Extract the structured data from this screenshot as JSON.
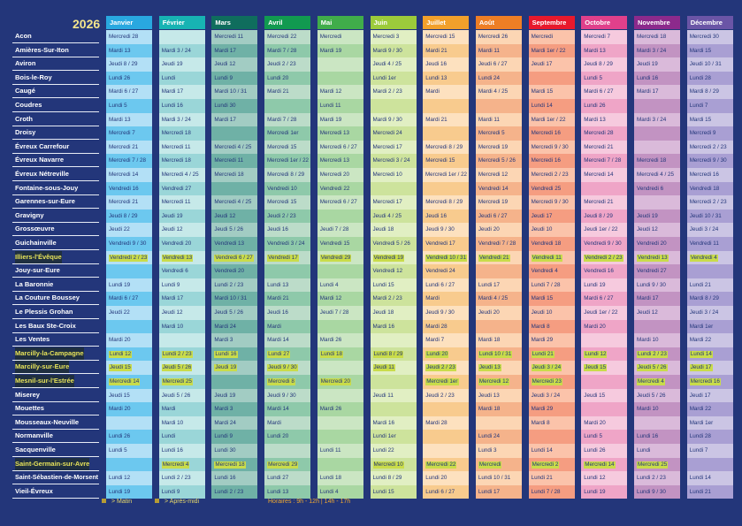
{
  "year": "2026",
  "months": [
    {
      "label": "Janvier",
      "header": "#29a8e0",
      "light": "#b3e0f6",
      "dark": "#6cc8ef"
    },
    {
      "label": "Février",
      "header": "#17b3b3",
      "light": "#c6e9e9",
      "dark": "#9ad6d8"
    },
    {
      "label": "Mars",
      "header": "#0f6d5d",
      "light": "#a2ccc3",
      "dark": "#6fb1a6"
    },
    {
      "label": "Avril",
      "header": "#119a50",
      "light": "#bcdcc9",
      "dark": "#8ec9aa"
    },
    {
      "label": "Mai",
      "header": "#40ad4a",
      "light": "#cbe6c3",
      "dark": "#a9d7a2"
    },
    {
      "label": "Juin",
      "header": "#9ccb3b",
      "light": "#e1efc3",
      "dark": "#cde39c"
    },
    {
      "label": "Juillet",
      "header": "#f2a02b",
      "light": "#fde1bf",
      "dark": "#f8cb8e"
    },
    {
      "label": "Août",
      "header": "#ee7e25",
      "light": "#fcd6b4",
      "dark": "#f5b38b"
    },
    {
      "label": "Septembre",
      "header": "#e8192c",
      "light": "#fbc3aa",
      "dark": "#f59d81"
    },
    {
      "label": "Octobre",
      "header": "#e0408b",
      "light": "#f6cade",
      "dark": "#efa5c7"
    },
    {
      "label": "Novembre",
      "header": "#8c2a8c",
      "light": "#dabada",
      "dark": "#c293c2"
    },
    {
      "label": "Décembre",
      "header": "#6a55a6",
      "light": "#cbc5e4",
      "dark": "#a99fd3"
    }
  ],
  "rows": [
    {
      "name": "Acon",
      "dates": [
        "Mercredi 28",
        "",
        "Mercredi 11",
        "Mercredi 22",
        "Mercredi",
        "Mercredi 3",
        "Mercredi 15",
        "Mercredi 26",
        "Mercredi",
        "Mercredi 7",
        "Mercredi 18",
        "Mercredi 30"
      ]
    },
    {
      "name": "Amières-Sur-Iton",
      "dates": [
        "Mardi 13",
        "Mardi 3 / 24",
        "Mardi 17",
        "Mardi 7 / 28",
        "Mardi 19",
        "Mardi 9 / 30",
        "Mardi 21",
        "Mardi 11",
        "Mardi 1er / 22",
        "Mardi 13",
        "Mardi 3 / 24",
        "Mardi 15"
      ]
    },
    {
      "name": "Aviron",
      "dates": [
        "Jeudi 8 / 29",
        "Jeudi 19",
        "Jeudi 12",
        "Jeudi 2 / 23",
        "",
        "Jeudi 4 / 25",
        "Jeudi 16",
        "Jeudi 6 / 27",
        "Jeudi 17",
        "Jeudi 8 / 29",
        "Jeudi 19",
        "Jeudi 10 / 31"
      ]
    },
    {
      "name": "Bois-le-Roy",
      "dates": [
        "Lundi 26",
        "Lundi",
        "Lundi 9",
        "Lundi 20",
        "",
        "Lundi 1er",
        "Lundi 13",
        "Lundi 24",
        "",
        "Lundi 5",
        "Lundi 16",
        "Lundi 28"
      ]
    },
    {
      "name": "Caugé",
      "dates": [
        "Mardi 6 / 27",
        "Mardi 17",
        "Mardi 10 / 31",
        "Mardi 21",
        "Mardi 12",
        "Mardi 2 / 23",
        "Mardi",
        "Mardi 4 / 25",
        "Mardi 15",
        "Mardi 6 / 27",
        "Mardi 17",
        "Mardi 8 / 29"
      ]
    },
    {
      "name": "Coudres",
      "dates": [
        "Lundi 5",
        "Lundi 16",
        "Lundi 30",
        "",
        "Lundi 11",
        "",
        "",
        "",
        "Lundi 14",
        "Lundi 26",
        "",
        "Lundi 7"
      ]
    },
    {
      "name": "Croth",
      "dates": [
        "Mardi 13",
        "Mardi 3 / 24",
        "Mardi 17",
        "Mardi 7 / 28",
        "Mardi 19",
        "Mardi 9 / 30",
        "Mardi 21",
        "Mardi 11",
        "Mardi 1er / 22",
        "Mardi 13",
        "Mardi 3 / 24",
        "Mardi 15"
      ]
    },
    {
      "name": "Droisy",
      "dates": [
        "Mercredi 7",
        "Mercredi 18",
        "",
        "Mercredi 1er",
        "Mercredi 13",
        "Mercredi 24",
        "",
        "Mercredi 5",
        "Mercredi 16",
        "Mercredi 28",
        "",
        "Mercredi 9"
      ]
    },
    {
      "name": "Évreux Carrefour",
      "dates": [
        "Mercredi 21",
        "Mercredi 11",
        "Mercredi 4 / 25",
        "Mercredi 15",
        "Mercredi 6 / 27",
        "Mercredi 17",
        "Mercredi 8 / 29",
        "Mercredi 19",
        "Mercredi 9 / 30",
        "Mercredi 21",
        "",
        "Mercredi 2 / 23"
      ]
    },
    {
      "name": "Évreux Navarre",
      "dates": [
        "Mercredi 7 / 28",
        "Mercredi 18",
        "Mercredi 11",
        "Mercredi 1er / 22",
        "Mercredi 13",
        "Mercredi 3 / 24",
        "Mercredi 15",
        "Mercredi 5 / 26",
        "Mercredi 16",
        "Mercredi 7 / 28",
        "Mercredi 18",
        "Mercredi 9 / 30"
      ]
    },
    {
      "name": "Évreux Nétreville",
      "dates": [
        "Mercredi 14",
        "Mercredi 4 / 25",
        "Mercredi 18",
        "Mercredi 8 / 29",
        "Mercredi 20",
        "Mercredi 10",
        "Mercredi 1er / 22",
        "Mercredi 12",
        "Mercredi 2 / 23",
        "Mercredi 14",
        "Mercredi 4 / 25",
        "Mercredi 16"
      ]
    },
    {
      "name": "Fontaine-sous-Jouy",
      "dates": [
        "Vendredi 16",
        "Vendredi 27",
        "",
        "Vendredi 10",
        "Vendredi 22",
        "",
        "",
        "Vendredi 14",
        "Vendredi 25",
        "",
        "Vendredi 6",
        "Vendredi 18"
      ]
    },
    {
      "name": "Garennes-sur-Eure",
      "dates": [
        "Mercredi 21",
        "Mercredi 11",
        "Mercredi 4 / 25",
        "Mercredi 15",
        "Mercredi 6 / 27",
        "Mercredi 17",
        "Mercredi 8 / 29",
        "Mercredi 19",
        "Mercredi 9 / 30",
        "Mercredi 21",
        "",
        "Mercredi 2 / 23"
      ]
    },
    {
      "name": "Gravigny",
      "dates": [
        "Jeudi 8 / 29",
        "Jeudi 19",
        "Jeudi 12",
        "Jeudi 2 / 23",
        "",
        "Jeudi 4 / 25",
        "Jeudi 16",
        "Jeudi 6 / 27",
        "Jeudi 17",
        "Jeudi 8 / 29",
        "Jeudi 19",
        "Jeudi 10 / 31"
      ]
    },
    {
      "name": "Grossœuvre",
      "dates": [
        "Jeudi 22",
        "Jeudi 12",
        "Jeudi 5 / 26",
        "Jeudi 16",
        "Jeudi 7 / 28",
        "Jeudi 18",
        "Jeudi 9 / 30",
        "Jeudi 20",
        "Jeudi 10",
        "Jeudi 1er / 22",
        "Jeudi 12",
        "Jeudi 3 / 24"
      ]
    },
    {
      "name": "Guichainville",
      "dates": [
        "Vendredi 9 / 30",
        "Vendredi 20",
        "Vendredi 13",
        "Vendredi 3 / 24",
        "Vendredi 15",
        "Vendredi 5 / 26",
        "Vendredi 17",
        "Vendredi 7 / 28",
        "Vendredi 18",
        "Vendredi 9 / 30",
        "Vendredi 20",
        "Vendredi 11"
      ]
    },
    {
      "name": "Illiers-l'Évêque",
      "highlight": true,
      "dates": [
        "Vendredi 2 / 23",
        "Vendredi 13",
        "Vendredi 6 / 27",
        "Vendredi 17",
        "Vendredi 29",
        "Vendredi 19",
        "Vendredi 10 / 31",
        "Vendredi 21",
        "Vendredi 11",
        "Vendredi 2 / 23",
        "Vendredi 13",
        "Vendredi 4"
      ]
    },
    {
      "name": "Jouy-sur-Eure",
      "dates": [
        "",
        "Vendredi 6",
        "Vendredi 20",
        "",
        "",
        "Vendredi 12",
        "Vendredi 24",
        "",
        "Vendredi 4",
        "Vendredi 16",
        "Vendredi 27",
        ""
      ]
    },
    {
      "name": "La Baronnie",
      "dates": [
        "Lundi 19",
        "Lundi 9",
        "Lundi 2 / 23",
        "Lundi 13",
        "Lundi 4",
        "Lundi 15",
        "Lundi 6 / 27",
        "Lundi 17",
        "Lundi 7 / 28",
        "Lundi 19",
        "Lundi 9 / 30",
        "Lundi 21"
      ]
    },
    {
      "name": "La Couture Boussey",
      "dates": [
        "Mardi 6 / 27",
        "Mardi 17",
        "Mardi 10 / 31",
        "Mardi 21",
        "Mardi 12",
        "Mardi 2 / 23",
        "Mardi",
        "Mardi 4 / 25",
        "Mardi 15",
        "Mardi 6 / 27",
        "Mardi 17",
        "Mardi 8 / 29"
      ]
    },
    {
      "name": "Le Plessis Grohan",
      "dates": [
        "Jeudi 22",
        "Jeudi 12",
        "Jeudi 5 / 26",
        "Jeudi 16",
        "Jeudi 7 / 28",
        "Jeudi 18",
        "Jeudi 9 / 30",
        "Jeudi 20",
        "Jeudi 10",
        "Jeudi 1er / 22",
        "Jeudi 12",
        "Jeudi 3 / 24"
      ]
    },
    {
      "name": "Les Baux Ste-Croix",
      "dates": [
        "",
        "Mardi 10",
        "Mardi 24",
        "Mardi",
        "",
        "Mardi 16",
        "Mardi 28",
        "",
        "Mardi 8",
        "Mardi 20",
        "",
        "Mardi 1er"
      ]
    },
    {
      "name": "Les Ventes",
      "dates": [
        "Mardi 20",
        "",
        "Mardi 3",
        "Mardi 14",
        "Mardi 26",
        "",
        "Mardi 7",
        "Mardi 18",
        "Mardi 29",
        "",
        "Mardi 10",
        "Mardi 22"
      ]
    },
    {
      "name": "Marcilly-la-Campagne",
      "highlight": true,
      "dates": [
        "Lundi 12",
        "Lundi 2 / 23",
        "Lundi 16",
        "Lundi 27",
        "Lundi 18",
        "Lundi 8 / 29",
        "Lundi 20",
        "Lundi 10 / 31",
        "Lundi 21",
        "Lundi 12",
        "Lundi 2 / 23",
        "Lundi 14"
      ]
    },
    {
      "name": "Marcilly-sur-Eure",
      "highlight": true,
      "dates": [
        "Jeudi 15",
        "Jeudi 5 / 26",
        "Jeudi 19",
        "Jeudi 9 / 30",
        "",
        "Jeudi 11",
        "Jeudi 2 / 23",
        "Jeudi 13",
        "Jeudi 3 / 24",
        "Jeudi 15",
        "Jeudi 5 / 26",
        "Jeudi 17"
      ]
    },
    {
      "name": "Mesnil-sur-l'Estrée",
      "highlight": true,
      "dates": [
        "Mercredi 14",
        "Mercredi 25",
        "",
        "Mercredi 8",
        "Mercredi 20",
        "",
        "Mercredi 1er",
        "Mercredi 12",
        "Mercredi 23",
        "",
        "Mercredi 4",
        "Mercredi 16"
      ]
    },
    {
      "name": "Miserey",
      "dates": [
        "Jeudi 15",
        "Jeudi 5 / 26",
        "Jeudi 19",
        "Jeudi 9 / 30",
        "",
        "Jeudi 11",
        "Jeudi 2 / 23",
        "Jeudi 13",
        "Jeudi 3 / 24",
        "Jeudi 15",
        "Jeudi 5 / 26",
        "Jeudi 17"
      ]
    },
    {
      "name": "Mouettes",
      "dates": [
        "Mardi 20",
        "Mardi",
        "Mardi 3",
        "Mardi 14",
        "Mardi 26",
        "",
        "",
        "Mardi 18",
        "Mardi 29",
        "",
        "Mardi 10",
        "Mardi 22"
      ]
    },
    {
      "name": "Mousseaux-Neuville",
      "dates": [
        "",
        "Mardi 10",
        "Mardi 24",
        "Mardi",
        "",
        "Mardi 16",
        "Mardi 28",
        "",
        "Mardi 8",
        "Mardi 20",
        "",
        "Mardi 1er"
      ]
    },
    {
      "name": "Normanville",
      "dates": [
        "Lundi 26",
        "Lundi",
        "Lundi 9",
        "Lundi 20",
        "",
        "Lundi 1er",
        "",
        "Lundi 24",
        "",
        "Lundi 5",
        "Lundi 16",
        "Lundi 28"
      ]
    },
    {
      "name": "Sacquenville",
      "dates": [
        "Lundi 5",
        "Lundi 16",
        "Lundi 30",
        "",
        "Lundi 11",
        "Lundi 22",
        "",
        "Lundi 3",
        "Lundi 14",
        "Lundi 26",
        "Lundi",
        "Lundi 7"
      ]
    },
    {
      "name": "Saint-Germain-sur-Avre",
      "highlight": true,
      "dates": [
        "",
        "Mercredi 4",
        "Mercredi 18",
        "Mercredi 29",
        "",
        "Mercredi 10",
        "Mercredi 22",
        "Mercredi",
        "Mercredi 2",
        "Mercredi 14",
        "Mercredi 25",
        ""
      ]
    },
    {
      "name": "Saint-Sébastien-de-Morsent",
      "dates": [
        "Lundi 12",
        "Lundi 2 / 23",
        "Lundi 16",
        "Lundi 27",
        "Lundi 18",
        "Lundi 8 / 29",
        "Lundi 20",
        "Lundi 10 / 31",
        "Lundi 21",
        "Lundi 12",
        "Lundi 2 / 23",
        "Lundi 14"
      ]
    },
    {
      "name": "Vieil-Évreux",
      "dates": [
        "Lundi 19",
        "Lundi 9",
        "Lundi 2 / 23",
        "Lundi 13",
        "Lundi 4",
        "Lundi 15",
        "Lundi 6 / 27",
        "Lundi 17",
        "Lundi 7 / 28",
        "Lundi 19",
        "Lundi 9 / 30",
        "Lundi 21"
      ]
    }
  ],
  "legend": {
    "matin": "> Matin",
    "apres_midi": "> Après-midi",
    "horaires": "Horaires : 9h - 12h | 14h - 17h"
  },
  "colors": {
    "background": "#23367a",
    "highlight": "#c9dc4a",
    "year": "#f5e68c"
  }
}
